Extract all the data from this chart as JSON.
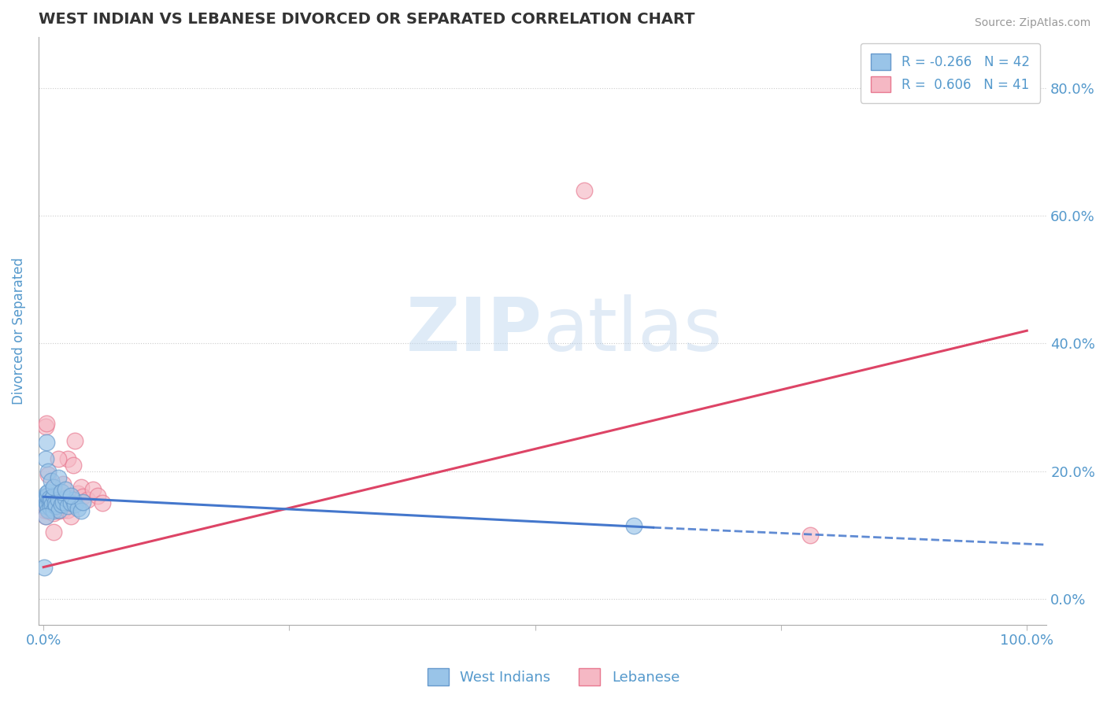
{
  "title": "WEST INDIAN VS LEBANESE DIVORCED OR SEPARATED CORRELATION CHART",
  "source_text": "Source: ZipAtlas.com",
  "ylabel": "Divorced or Separated",
  "watermark": "ZIPatlas",
  "xlim": [
    -0.005,
    1.02
  ],
  "ylim": [
    -0.04,
    0.88
  ],
  "yticks": [
    0.0,
    0.2,
    0.4,
    0.6,
    0.8
  ],
  "ytick_labels": [
    "0.0%",
    "20.0%",
    "40.0%",
    "60.0%",
    "80.0%"
  ],
  "xticks": [
    0.0,
    0.25,
    0.5,
    0.75,
    1.0
  ],
  "xtick_labels": [
    "0.0%",
    "",
    "",
    "",
    "100.0%"
  ],
  "legend_label_wi": "R = -0.266   N = 42",
  "legend_label_lb": "R =  0.606   N = 41",
  "west_indian_color": "#99c4e8",
  "lebanese_color": "#f5b8c4",
  "west_indian_edge": "#6699cc",
  "lebanese_edge": "#e87890",
  "trend_blue_color": "#4477cc",
  "trend_pink_color": "#dd4466",
  "background_color": "#ffffff",
  "grid_color": "#cccccc",
  "title_color": "#333333",
  "tick_label_color": "#5599cc",
  "west_indian_x": [
    0.001,
    0.002,
    0.002,
    0.003,
    0.003,
    0.004,
    0.004,
    0.005,
    0.005,
    0.006,
    0.006,
    0.007,
    0.008,
    0.009,
    0.01,
    0.01,
    0.012,
    0.013,
    0.015,
    0.016,
    0.018,
    0.02,
    0.022,
    0.025,
    0.028,
    0.03,
    0.032,
    0.035,
    0.038,
    0.04,
    0.002,
    0.003,
    0.005,
    0.008,
    0.01,
    0.015,
    0.018,
    0.022,
    0.028,
    0.6,
    0.001,
    0.002
  ],
  "west_indian_y": [
    0.155,
    0.145,
    0.16,
    0.15,
    0.165,
    0.148,
    0.162,
    0.14,
    0.168,
    0.152,
    0.158,
    0.143,
    0.155,
    0.148,
    0.138,
    0.162,
    0.15,
    0.145,
    0.155,
    0.14,
    0.148,
    0.152,
    0.158,
    0.145,
    0.15,
    0.155,
    0.148,
    0.142,
    0.138,
    0.152,
    0.22,
    0.245,
    0.2,
    0.185,
    0.175,
    0.19,
    0.168,
    0.172,
    0.162,
    0.115,
    0.05,
    0.13
  ],
  "lebanese_x": [
    0.001,
    0.002,
    0.002,
    0.003,
    0.003,
    0.004,
    0.005,
    0.005,
    0.006,
    0.007,
    0.008,
    0.009,
    0.01,
    0.012,
    0.015,
    0.016,
    0.018,
    0.02,
    0.022,
    0.025,
    0.028,
    0.03,
    0.032,
    0.035,
    0.038,
    0.04,
    0.045,
    0.05,
    0.055,
    0.06,
    0.002,
    0.003,
    0.005,
    0.008,
    0.01,
    0.015,
    0.02,
    0.025,
    0.028,
    0.55,
    0.78
  ],
  "lebanese_y": [
    0.14,
    0.13,
    0.155,
    0.145,
    0.16,
    0.148,
    0.138,
    0.162,
    0.15,
    0.155,
    0.142,
    0.148,
    0.135,
    0.155,
    0.145,
    0.138,
    0.15,
    0.14,
    0.152,
    0.22,
    0.158,
    0.21,
    0.248,
    0.165,
    0.175,
    0.16,
    0.155,
    0.172,
    0.162,
    0.15,
    0.27,
    0.275,
    0.195,
    0.155,
    0.105,
    0.22,
    0.18,
    0.14,
    0.13,
    0.64,
    0.1
  ],
  "trend_lb_x0": 0.0,
  "trend_lb_y0": 0.05,
  "trend_lb_x1": 1.0,
  "trend_lb_y1": 0.42,
  "trend_wi_x0": 0.0,
  "trend_wi_y0": 0.16,
  "trend_wi_x1": 0.62,
  "trend_wi_y1": 0.112,
  "trend_wi_dash_x0": 0.62,
  "trend_wi_dash_y0": 0.112,
  "trend_wi_dash_x1": 1.02,
  "trend_wi_dash_y1": 0.085
}
